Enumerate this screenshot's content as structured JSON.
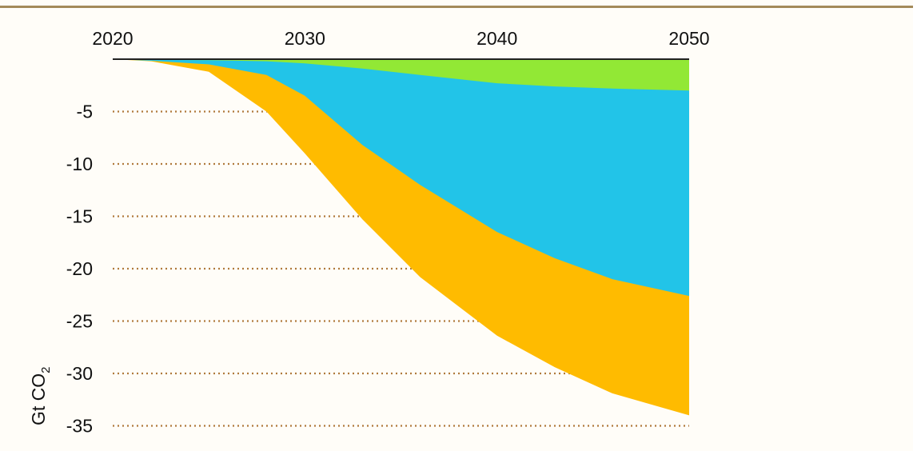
{
  "chart_data": {
    "type": "area",
    "title": "",
    "xlabel": "",
    "ylabel": "Gt CO",
    "ylabel_subscript": "2",
    "x": [
      2020,
      2022,
      2025,
      2028,
      2030,
      2033,
      2036,
      2040,
      2043,
      2046,
      2050
    ],
    "x_ticks": [
      "2020",
      "2030",
      "2040",
      "2050"
    ],
    "x_tick_values": [
      2020,
      2030,
      2040,
      2050
    ],
    "y_ticks": [
      "-5",
      "-10",
      "-15",
      "-20",
      "-25",
      "-30",
      "-35"
    ],
    "y_tick_values": [
      -5,
      -10,
      -15,
      -20,
      -25,
      -30,
      -35
    ],
    "ylim": [
      -35.5,
      0
    ],
    "xlim": [
      2020,
      2050
    ],
    "stacked": true,
    "series": [
      {
        "name": "green",
        "color": "#92e835",
        "boundary": [
          0,
          -0.05,
          -0.1,
          -0.2,
          -0.4,
          -0.9,
          -1.5,
          -2.3,
          -2.6,
          -2.8,
          -3.0
        ]
      },
      {
        "name": "blue",
        "color": "#22c4e8",
        "boundary": [
          0,
          -0.15,
          -0.5,
          -1.5,
          -3.5,
          -8.2,
          -12.0,
          -16.5,
          -19.0,
          -21.0,
          -22.6
        ]
      },
      {
        "name": "orange",
        "color": "#ffbb00",
        "boundary": [
          0,
          -0.2,
          -1.2,
          -5.0,
          -9.0,
          -15.3,
          -20.8,
          -26.4,
          -29.4,
          -31.9,
          -34.0
        ]
      }
    ]
  }
}
